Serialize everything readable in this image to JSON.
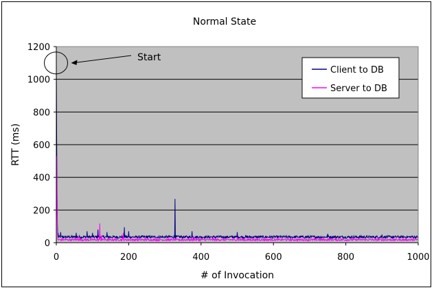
{
  "chart_data": {
    "type": "line",
    "title": "Normal State",
    "xlabel": "# of Invocation",
    "ylabel": "RTT (ms)",
    "xlim": [
      0,
      1000
    ],
    "ylim": [
      0,
      1200
    ],
    "x_ticks": [
      0,
      200,
      400,
      600,
      800,
      1000
    ],
    "y_ticks": [
      0,
      200,
      400,
      600,
      800,
      1000,
      1200
    ],
    "grid": "horizontal",
    "plot_background": "#c0c0c0",
    "legend_position": "top-right",
    "annotation": {
      "text": "Start",
      "points_to": {
        "x": 0,
        "y": 1100
      }
    },
    "series": [
      {
        "name": "Client to DB",
        "color": "#000080",
        "baseline": 35,
        "noise": 8,
        "spikes": [
          {
            "x": 0,
            "y": 1090
          },
          {
            "x": 1,
            "y": 640
          },
          {
            "x": 2,
            "y": 330
          },
          {
            "x": 3,
            "y": 120
          },
          {
            "x": 5,
            "y": 60
          },
          {
            "x": 12,
            "y": 65
          },
          {
            "x": 55,
            "y": 60
          },
          {
            "x": 85,
            "y": 70
          },
          {
            "x": 100,
            "y": 60
          },
          {
            "x": 115,
            "y": 80
          },
          {
            "x": 140,
            "y": 65
          },
          {
            "x": 188,
            "y": 95
          },
          {
            "x": 200,
            "y": 70
          },
          {
            "x": 328,
            "y": 268
          },
          {
            "x": 375,
            "y": 70
          },
          {
            "x": 500,
            "y": 65
          },
          {
            "x": 750,
            "y": 55
          },
          {
            "x": 900,
            "y": 50
          }
        ]
      },
      {
        "name": "Server to DB",
        "color": "#ff00ff",
        "baseline": 18,
        "noise": 6,
        "spikes": [
          {
            "x": 1,
            "y": 530
          },
          {
            "x": 2,
            "y": 260
          },
          {
            "x": 3,
            "y": 80
          },
          {
            "x": 60,
            "y": 40
          },
          {
            "x": 120,
            "y": 118
          },
          {
            "x": 125,
            "y": 45
          },
          {
            "x": 185,
            "y": 60
          },
          {
            "x": 380,
            "y": 40
          },
          {
            "x": 500,
            "y": 35
          }
        ]
      }
    ]
  }
}
